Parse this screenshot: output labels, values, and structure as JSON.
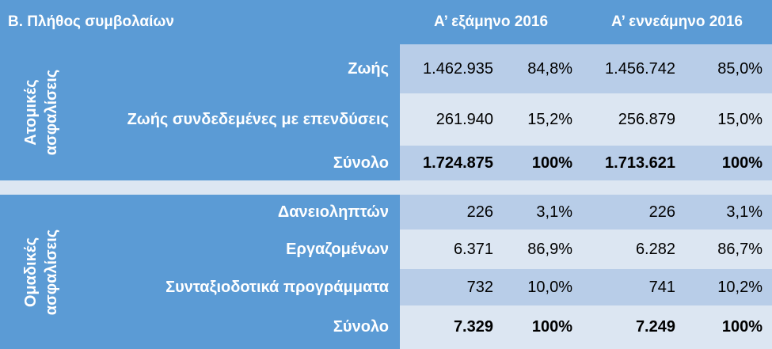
{
  "table": {
    "title": "B. Πλήθος συμβολαίων",
    "col_headers": [
      "Α’ εξάμηνο 2016",
      "Α’ εννεάμηνο 2016"
    ],
    "sections": [
      {
        "side_label_line1": "Ατομικές",
        "side_label_line2": "ασφαλίσεις",
        "rows": [
          {
            "label": "Ζωής",
            "h1_value": "1.462.935",
            "h1_pct": "84,8%",
            "n_value": "1.456.742",
            "n_pct": "85,0%"
          },
          {
            "label": "Ζωής συνδεδεμένες με επενδύσεις",
            "h1_value": "261.940",
            "h1_pct": "15,2%",
            "n_value": "256.879",
            "n_pct": "15,0%"
          },
          {
            "label": "Σύνολο",
            "h1_value": "1.724.875",
            "h1_pct": "100%",
            "n_value": "1.713.621",
            "n_pct": "100%"
          }
        ]
      },
      {
        "side_label_line1": "Ομαδικές",
        "side_label_line2": "ασφαλίσεις",
        "rows": [
          {
            "label": "Δανειοληπτών",
            "h1_value": "226",
            "h1_pct": "3,1%",
            "n_value": "226",
            "n_pct": "3,1%"
          },
          {
            "label": "Εργαζομένων",
            "h1_value": "6.371",
            "h1_pct": "86,9%",
            "n_value": "6.282",
            "n_pct": "86,7%"
          },
          {
            "label": "Συνταξιοδοτικά προγράμματα",
            "h1_value": "732",
            "h1_pct": "10,0%",
            "n_value": "741",
            "n_pct": "10,2%"
          },
          {
            "label": "Σύνολο",
            "h1_value": "7.329",
            "h1_pct": "100%",
            "n_value": "7.249",
            "n_pct": "100%"
          }
        ]
      }
    ]
  }
}
